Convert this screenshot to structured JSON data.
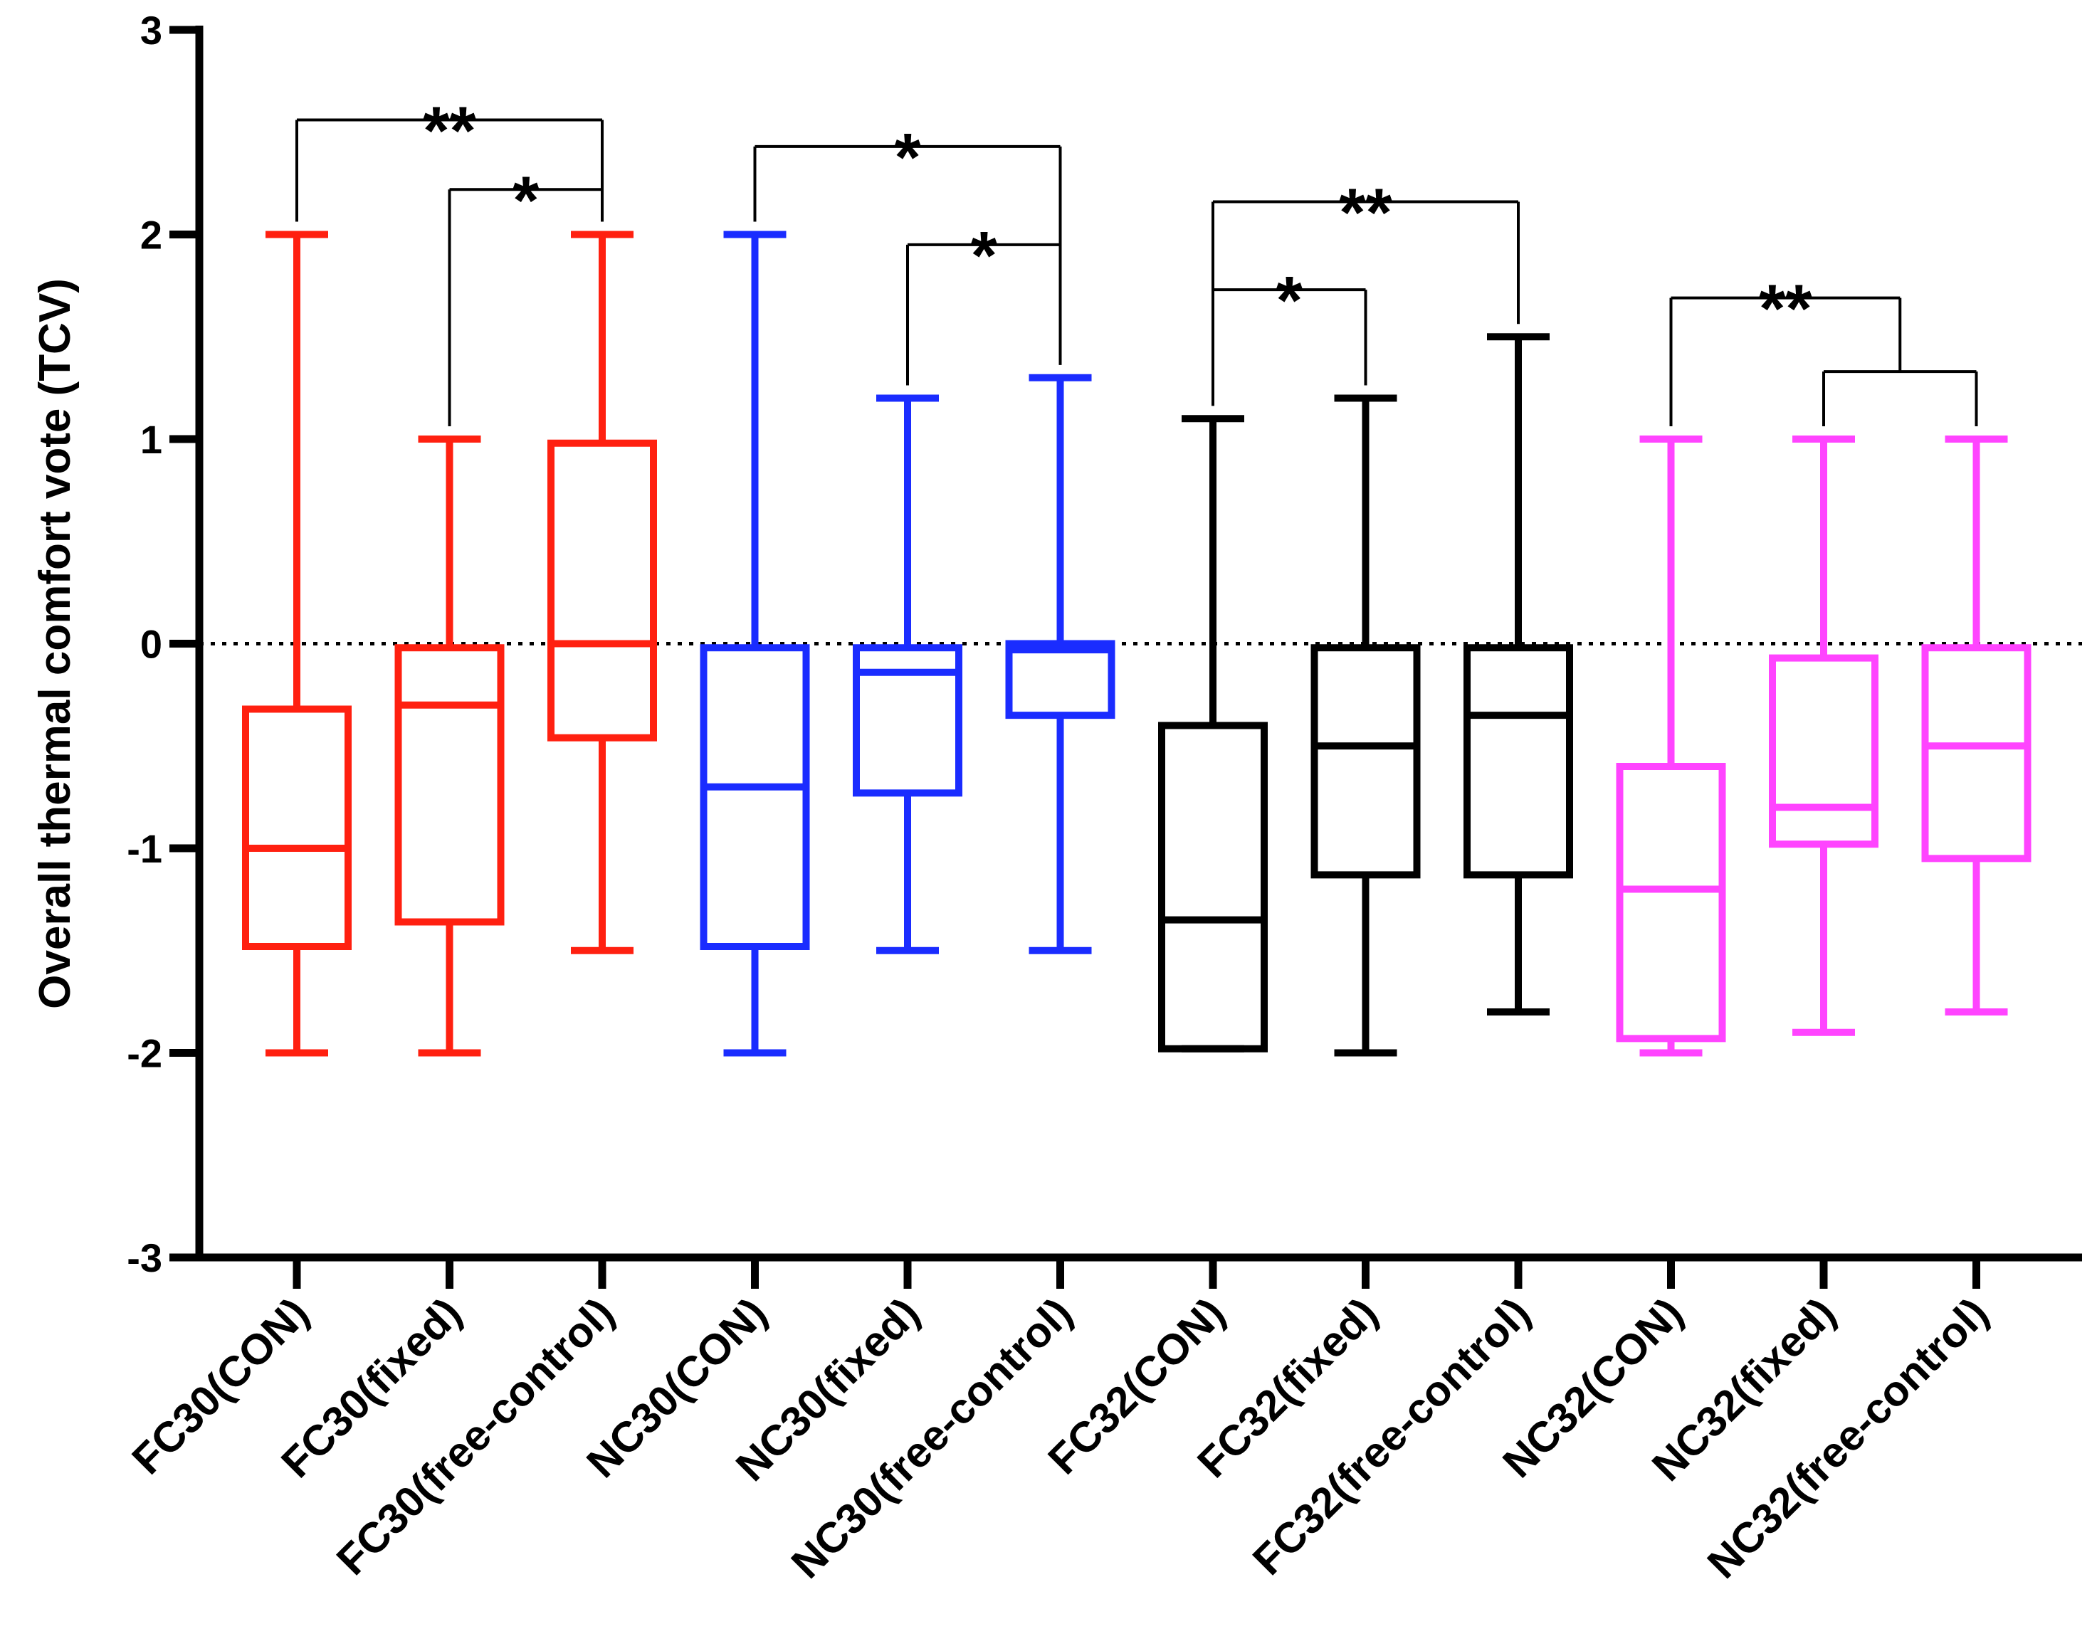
{
  "chart_data": {
    "type": "box",
    "ylabel": "Overall thermal comfort vote (TCV)",
    "xlabel": "",
    "ylim": [
      -3,
      3
    ],
    "yticks": [
      3,
      2,
      1,
      0,
      -1,
      -2,
      -3
    ],
    "reference_line": 0,
    "categories": [
      "FC30(CON)",
      "FC30(fixed)",
      "FC30(free-control)",
      "NC30(CON)",
      "NC30(fixed)",
      "NC30(free-control)",
      "FC32(CON)",
      "FC32(fixed)",
      "FC32(free-control)",
      "NC32(CON)",
      "NC32(fixed)",
      "NC32(free-control)"
    ],
    "boxes": [
      {
        "group": "FC30",
        "color": "#ff2010",
        "min": -2,
        "q1": -1.48,
        "median": -1,
        "q3": -0.32,
        "max": 2
      },
      {
        "group": "FC30",
        "color": "#ff2010",
        "min": -2,
        "q1": -1.36,
        "median": -0.3,
        "q3": -0.02,
        "max": 1
      },
      {
        "group": "FC30",
        "color": "#ff2010",
        "min": -1.5,
        "q1": -0.46,
        "median": 0,
        "q3": 0.98,
        "max": 2
      },
      {
        "group": "NC30",
        "color": "#1a2cff",
        "min": -2,
        "q1": -1.48,
        "median": -0.7,
        "q3": -0.02,
        "max": 2
      },
      {
        "group": "NC30",
        "color": "#1a2cff",
        "min": -1.5,
        "q1": -0.73,
        "median": -0.14,
        "q3": -0.02,
        "max": 1.2
      },
      {
        "group": "NC30",
        "color": "#1a2cff",
        "min": -1.5,
        "q1": -0.35,
        "median": -0.03,
        "q3": 0,
        "max": 1.3
      },
      {
        "group": "FC32",
        "color": "#000000",
        "min": -1.98,
        "q1": -1.98,
        "median": -1.35,
        "q3": -0.4,
        "max": 1.1
      },
      {
        "group": "FC32",
        "color": "#000000",
        "min": -2,
        "q1": -1.13,
        "median": -0.5,
        "q3": -0.02,
        "max": 1.2
      },
      {
        "group": "FC32",
        "color": "#000000",
        "min": -1.8,
        "q1": -1.13,
        "median": -0.35,
        "q3": -0.02,
        "max": 1.5
      },
      {
        "group": "NC32",
        "color": "#ff44ff",
        "min": -2,
        "q1": -1.93,
        "median": -1.2,
        "q3": -0.6,
        "max": 1
      },
      {
        "group": "NC32",
        "color": "#ff44ff",
        "min": -1.9,
        "q1": -0.98,
        "median": -0.8,
        "q3": -0.07,
        "max": 1
      },
      {
        "group": "NC32",
        "color": "#ff44ff",
        "min": -1.8,
        "q1": -1.05,
        "median": -0.5,
        "q3": -0.02,
        "max": 1
      }
    ],
    "annotations": [
      {
        "from": 0,
        "to": 2,
        "height": 2.56,
        "label": "**"
      },
      {
        "from": 1,
        "to": 2,
        "height": 2.22,
        "label": "*"
      },
      {
        "from": 3,
        "to": 5,
        "height": 2.43,
        "label": "*"
      },
      {
        "from": 4,
        "to": 5,
        "height": 1.95,
        "label": "*"
      },
      {
        "from": 6,
        "to": 8,
        "height": 2.16,
        "label": "**"
      },
      {
        "from": 6,
        "to": 7,
        "height": 1.73,
        "label": "*"
      },
      {
        "from": 9,
        "to": 10.5,
        "height": 1.69,
        "label": "**"
      },
      {
        "from": 10,
        "to": 11,
        "height": 1.33,
        "label": ""
      }
    ]
  }
}
